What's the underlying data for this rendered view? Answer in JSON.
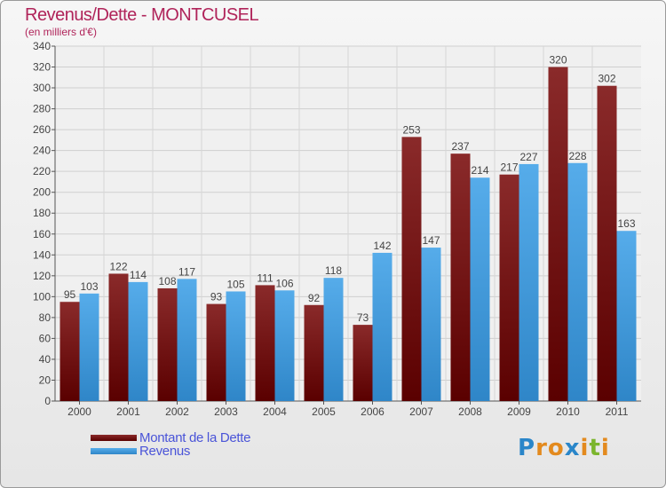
{
  "title": "Revenus/Dette - MONTCUSEL",
  "subtitle": "(en milliers d'€)",
  "logo": {
    "letters": [
      "P",
      "r",
      "o",
      "x",
      "i",
      "t",
      "i"
    ],
    "colors": [
      "#2a86c9",
      "#e38a1e",
      "#e38a1e",
      "#2a86c9",
      "#e38a1e",
      "#7bb52d",
      "#e38a1e"
    ]
  },
  "colors": {
    "dette": "#7a1515",
    "revenus": "#4aa3e4"
  },
  "chart_data": {
    "type": "bar",
    "title": "Revenus/Dette - MONTCUSEL",
    "subtitle": "(en milliers d'€)",
    "categories": [
      "2000",
      "2001",
      "2002",
      "2003",
      "2004",
      "2005",
      "2006",
      "2007",
      "2008",
      "2009",
      "2010",
      "2011"
    ],
    "series": [
      {
        "name": "Montant de la Dette",
        "values": [
          95,
          122,
          108,
          93,
          111,
          92,
          73,
          253,
          237,
          217,
          320,
          302
        ]
      },
      {
        "name": "Revenus",
        "values": [
          103,
          114,
          117,
          105,
          106,
          118,
          142,
          147,
          214,
          227,
          228,
          163
        ]
      }
    ],
    "ylim": [
      0,
      340
    ],
    "yticks": [
      0,
      20,
      40,
      60,
      80,
      100,
      120,
      140,
      160,
      180,
      200,
      220,
      240,
      260,
      280,
      300,
      320,
      340
    ],
    "grid": true,
    "legend": "bottom-left"
  }
}
